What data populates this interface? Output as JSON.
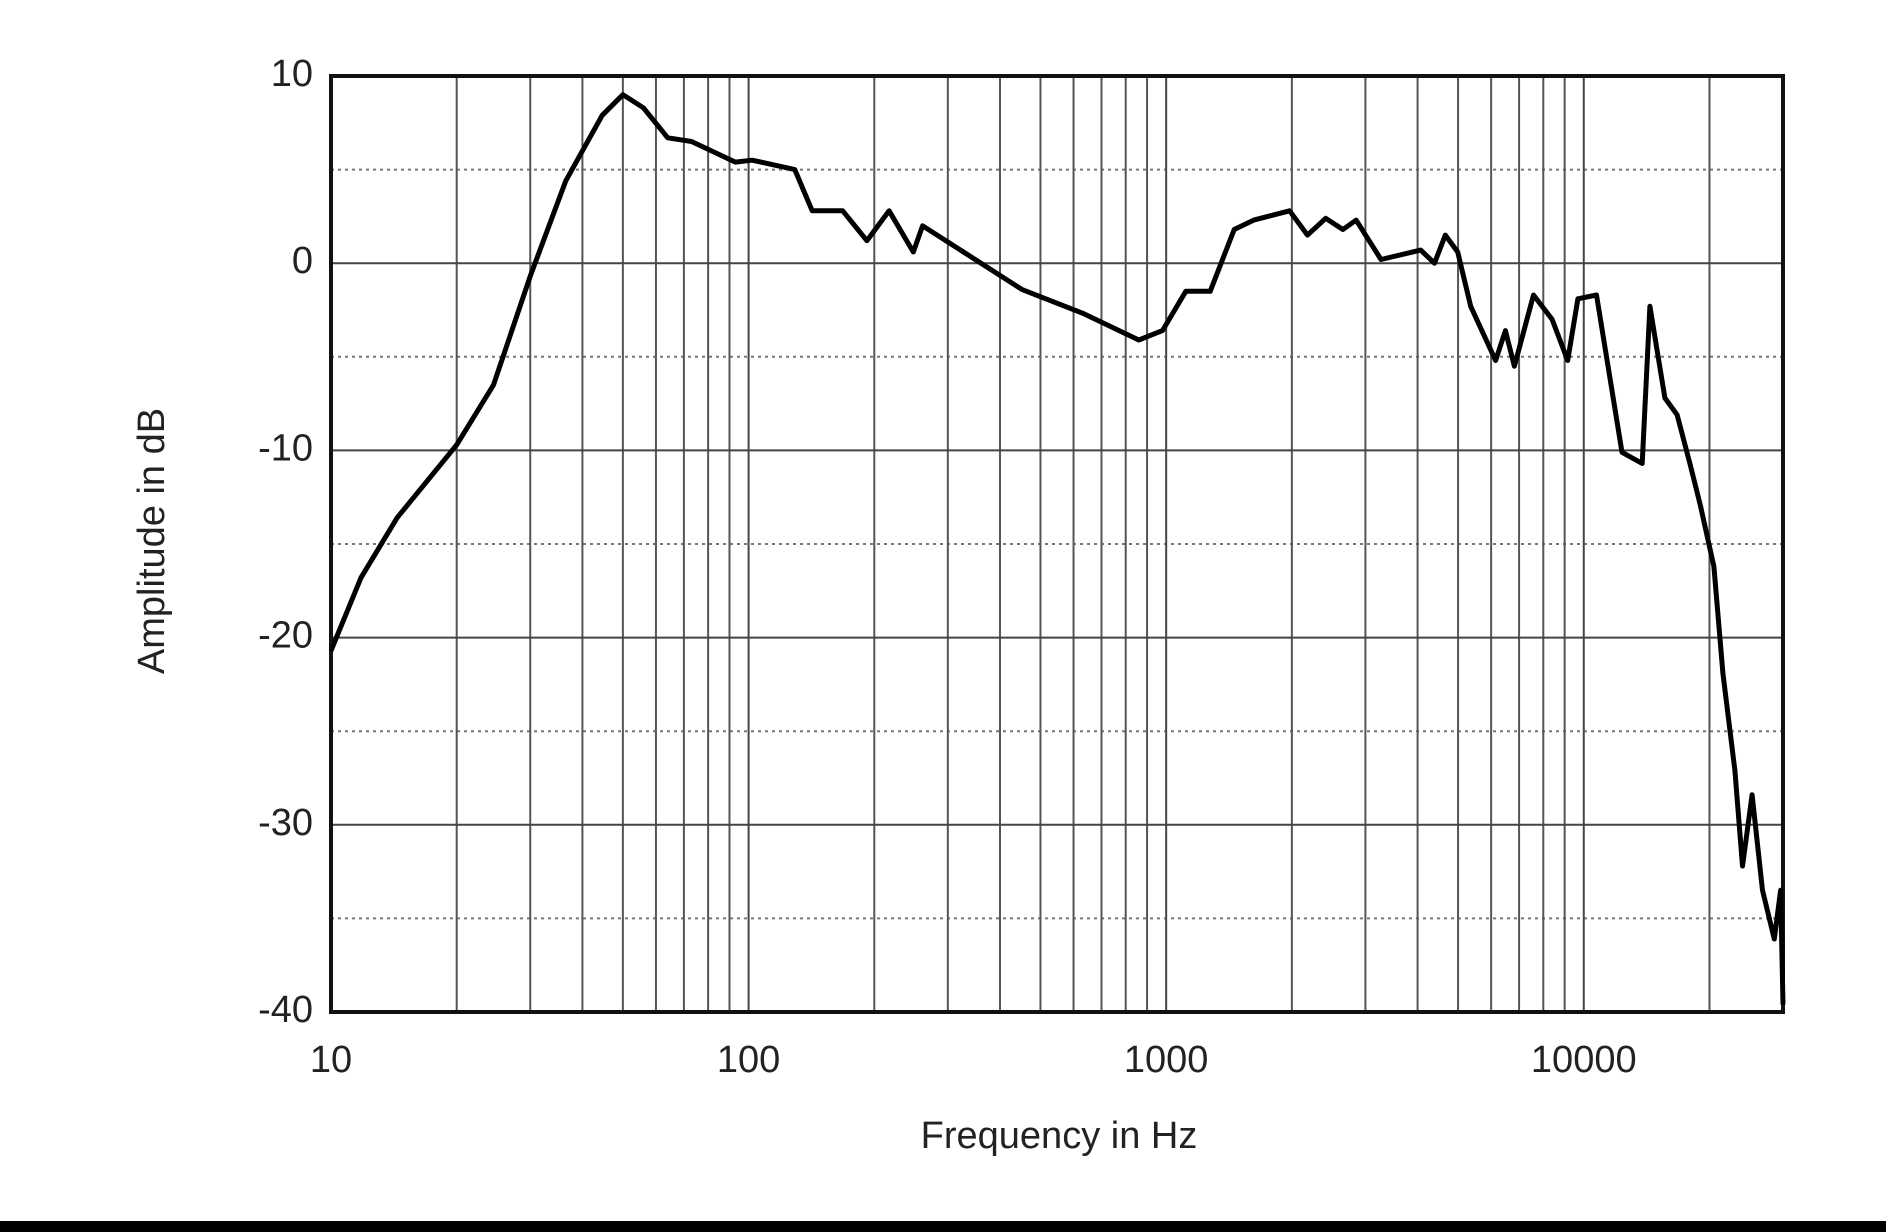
{
  "chart_data": {
    "type": "line",
    "x_label": "Frequency  in Hz",
    "y_label": "Amplitude in dB",
    "x_scale": "log",
    "xlim": [
      10,
      30000
    ],
    "ylim": [
      -40,
      10
    ],
    "xticks": [
      10,
      100,
      1000,
      10000
    ],
    "yticks": [
      -40,
      -30,
      -20,
      -10,
      0,
      10
    ],
    "minor_xticks": [
      20,
      30,
      40,
      50,
      60,
      70,
      80,
      90,
      200,
      300,
      400,
      500,
      600,
      700,
      800,
      900,
      2000,
      3000,
      4000,
      5000,
      6000,
      7000,
      8000,
      9000,
      20000
    ],
    "minor_yticks": [
      -35,
      -25,
      -15,
      -5,
      5
    ],
    "grid": true,
    "series": [
      {
        "color": "#000000",
        "x": [
          10,
          11.8,
          14.4,
          20,
          24.5,
          30,
          36.5,
          44.6,
          50,
          56,
          64,
          73,
          93,
          102,
          129,
          142,
          168,
          192,
          217,
          248,
          261,
          327,
          451,
          635,
          860,
          980,
          1114,
          1275,
          1455,
          1620,
          1975,
          2180,
          2410,
          2650,
          2850,
          3270,
          4070,
          4390,
          4660,
          4990,
          5360,
          6150,
          6490,
          6820,
          7580,
          8400,
          9150,
          9680,
          10730,
          12350,
          13800,
          14400,
          15640,
          16730,
          17950,
          19000,
          20500,
          21540,
          23010,
          24000,
          25300,
          26800,
          28600,
          29600,
          30000
        ],
        "values": [
          -20.7,
          -16.8,
          -13.6,
          -9.7,
          -6.5,
          -0.7,
          4.4,
          7.9,
          9.0,
          8.3,
          6.7,
          6.5,
          5.4,
          5.5,
          5.0,
          2.8,
          2.8,
          1.2,
          2.8,
          0.6,
          2.0,
          0.6,
          -1.4,
          -2.7,
          -4.1,
          -3.6,
          -1.5,
          -1.5,
          1.8,
          2.3,
          2.8,
          1.5,
          2.4,
          1.8,
          2.3,
          0.2,
          0.7,
          0.0,
          1.5,
          0.6,
          -2.3,
          -5.2,
          -3.6,
          -5.5,
          -1.7,
          -3.0,
          -5.2,
          -1.9,
          -1.7,
          -10.1,
          -10.7,
          -2.3,
          -7.2,
          -8.1,
          -10.7,
          -12.9,
          -16.2,
          -21.9,
          -27.1,
          -32.2,
          -28.4,
          -33.5,
          -36.1,
          -33.5,
          -39.6
        ]
      }
    ]
  }
}
